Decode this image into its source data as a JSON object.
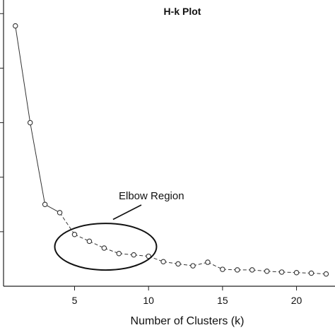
{
  "chart_data": {
    "type": "line",
    "title": "H-k Plot",
    "xlabel": "Number of Clusters (k)",
    "ylabel": "",
    "x": [
      1,
      2,
      3,
      4,
      5,
      6,
      7,
      8,
      9,
      10,
      11,
      12,
      13,
      14,
      15,
      16,
      17,
      18,
      19,
      20,
      21,
      22
    ],
    "series": [
      {
        "values": [
          9.55,
          6.0,
          3.0,
          2.7,
          1.9,
          1.65,
          1.4,
          1.2,
          1.15,
          1.1,
          0.9,
          0.82,
          0.75,
          0.88,
          0.62,
          0.6,
          0.6,
          0.55,
          0.52,
          0.5,
          0.48,
          0.45
        ]
      }
    ],
    "xlim": [
      0.2,
      22.6
    ],
    "ylim": [
      0,
      10.5
    ],
    "xticks": [
      5,
      10,
      15,
      20
    ],
    "yticks": [
      2,
      4,
      6,
      8,
      10
    ],
    "grid": false,
    "marker": "open-circle",
    "annotation": {
      "label": "Elbow Region",
      "ellipse_center": [
        7.1,
        1.45
      ],
      "arrow_to": [
        7.6,
        2.45
      ]
    }
  }
}
